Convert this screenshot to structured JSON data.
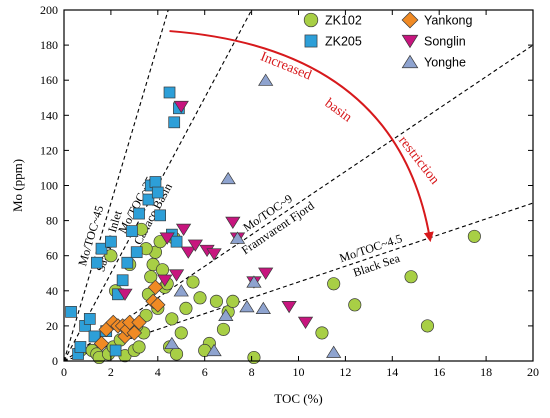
{
  "chart_data": {
    "type": "scatter",
    "xlabel": "TOC (%)",
    "ylabel": "Mo (ppm)",
    "xlim": [
      0,
      20
    ],
    "ylim": [
      0,
      200
    ],
    "x_ticks": [
      "0",
      "2",
      "4",
      "6",
      "8",
      "10",
      "12",
      "14",
      "16",
      "18",
      "20"
    ],
    "y_ticks": [
      "0",
      "20",
      "40",
      "60",
      "80",
      "100",
      "120",
      "140",
      "160",
      "180",
      "200"
    ],
    "grid": false,
    "legend_position": "top-right",
    "series": [
      {
        "name": "ZK102",
        "marker": "circle",
        "color": "#a8cf45",
        "points": [
          [
            0.7,
            6
          ],
          [
            1.2,
            6
          ],
          [
            1.4,
            4
          ],
          [
            1.5,
            2
          ],
          [
            1.9,
            4
          ],
          [
            2.1,
            8
          ],
          [
            2.4,
            12
          ],
          [
            2.6,
            3
          ],
          [
            2.8,
            20
          ],
          [
            3.0,
            6
          ],
          [
            3.2,
            8
          ],
          [
            3.4,
            16
          ],
          [
            3.5,
            26
          ],
          [
            3.6,
            38
          ],
          [
            3.7,
            48
          ],
          [
            3.8,
            55
          ],
          [
            3.9,
            62
          ],
          [
            4.0,
            30
          ],
          [
            4.2,
            52
          ],
          [
            4.3,
            42
          ],
          [
            4.4,
            44
          ],
          [
            4.5,
            8
          ],
          [
            4.6,
            24
          ],
          [
            4.7,
            70
          ],
          [
            4.8,
            4
          ],
          [
            5.0,
            16
          ],
          [
            5.2,
            30
          ],
          [
            5.5,
            45
          ],
          [
            5.8,
            36
          ],
          [
            6.2,
            10
          ],
          [
            6.5,
            34
          ],
          [
            6.8,
            18
          ],
          [
            7.0,
            28
          ],
          [
            7.2,
            34
          ],
          [
            8.1,
            2
          ],
          [
            2.2,
            40
          ],
          [
            2.0,
            60
          ],
          [
            2.8,
            55
          ],
          [
            3.1,
            20
          ],
          [
            3.3,
            75
          ],
          [
            3.5,
            64
          ],
          [
            4.1,
            68
          ],
          [
            6.0,
            6
          ],
          [
            11.0,
            16
          ],
          [
            11.5,
            44
          ],
          [
            12.4,
            32
          ],
          [
            14.8,
            48
          ],
          [
            15.5,
            20
          ],
          [
            17.5,
            71
          ]
        ]
      },
      {
        "name": "ZK205",
        "marker": "square",
        "color": "#2d9fd8",
        "points": [
          [
            0.3,
            28
          ],
          [
            0.6,
            4
          ],
          [
            0.7,
            8
          ],
          [
            0.9,
            20
          ],
          [
            1.1,
            24
          ],
          [
            1.3,
            14
          ],
          [
            1.4,
            56
          ],
          [
            1.6,
            64
          ],
          [
            1.8,
            17
          ],
          [
            2.0,
            68
          ],
          [
            2.2,
            6
          ],
          [
            2.3,
            38
          ],
          [
            2.5,
            46
          ],
          [
            2.7,
            56
          ],
          [
            2.9,
            74
          ],
          [
            3.1,
            62
          ],
          [
            3.2,
            84
          ],
          [
            3.6,
            92
          ],
          [
            3.7,
            100
          ],
          [
            3.9,
            102
          ],
          [
            4.0,
            96
          ],
          [
            4.1,
            83
          ],
          [
            4.5,
            153
          ],
          [
            4.6,
            72
          ],
          [
            4.7,
            136
          ],
          [
            4.8,
            68
          ],
          [
            4.9,
            144
          ]
        ]
      },
      {
        "name": "Yankong",
        "marker": "diamond",
        "color": "#f08a24",
        "points": [
          [
            1.6,
            10
          ],
          [
            1.8,
            18
          ],
          [
            2.1,
            22
          ],
          [
            2.3,
            20
          ],
          [
            2.5,
            20
          ],
          [
            2.6,
            14
          ],
          [
            2.7,
            18
          ],
          [
            2.8,
            22
          ],
          [
            3.0,
            16
          ],
          [
            3.2,
            22
          ],
          [
            3.8,
            34
          ],
          [
            3.9,
            42
          ],
          [
            4.0,
            32
          ]
        ]
      },
      {
        "name": "Songlin",
        "marker": "triangle-down",
        "color": "#c7157e",
        "points": [
          [
            2.6,
            38
          ],
          [
            4.3,
            46
          ],
          [
            4.4,
            70
          ],
          [
            4.8,
            49
          ],
          [
            5.0,
            145
          ],
          [
            5.1,
            75
          ],
          [
            5.3,
            62
          ],
          [
            5.6,
            66
          ],
          [
            6.1,
            63
          ],
          [
            6.4,
            61
          ],
          [
            7.2,
            79
          ],
          [
            7.4,
            70
          ],
          [
            8.1,
            45
          ],
          [
            8.6,
            50
          ],
          [
            9.6,
            31
          ],
          [
            10.3,
            22
          ]
        ]
      },
      {
        "name": "Yonghe",
        "marker": "triangle-up",
        "color": "#8ea3cf",
        "points": [
          [
            4.6,
            10
          ],
          [
            5.0,
            40
          ],
          [
            6.4,
            6
          ],
          [
            6.9,
            26
          ],
          [
            7.0,
            104
          ],
          [
            7.4,
            70
          ],
          [
            7.8,
            31
          ],
          [
            8.1,
            45
          ],
          [
            8.5,
            30
          ],
          [
            8.6,
            160
          ],
          [
            11.5,
            5
          ]
        ]
      }
    ],
    "reference_lines": [
      {
        "slope": 45,
        "label_ratio": "Mo/TOC~45",
        "label_site": "Saanich Inlet"
      },
      {
        "slope": 25,
        "label_ratio": "Mo/TOC~25",
        "label_site": "Cariaco Basin"
      },
      {
        "slope": 9,
        "label_ratio": "Mo/TOC~9",
        "label_site": "Framvarent Fjord"
      },
      {
        "slope": 4.5,
        "label_ratio": "Mo/TOC~4.5",
        "label_site": "Black Sea"
      }
    ],
    "annotation": {
      "words": [
        "Increased",
        "basin",
        "restriction"
      ],
      "color": "#d7191c"
    }
  }
}
